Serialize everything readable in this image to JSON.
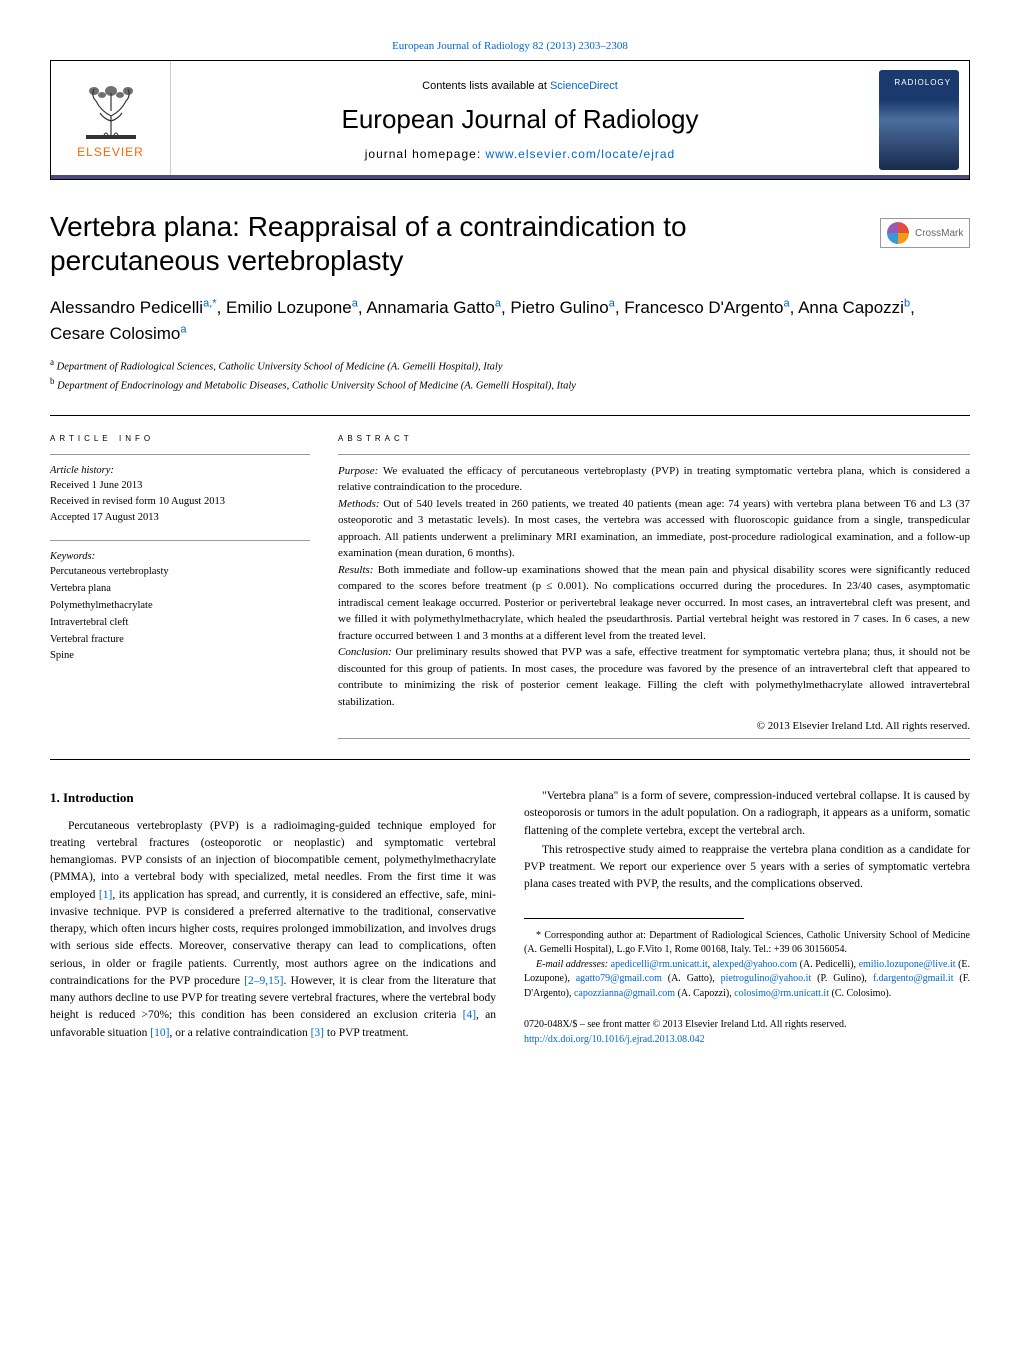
{
  "header_link": "European Journal of Radiology 82 (2013) 2303–2308",
  "masthead": {
    "contents_prefix": "Contents lists available at ",
    "contents_link": "ScienceDirect",
    "journal_name": "European Journal of Radiology",
    "homepage_prefix": "journal homepage: ",
    "homepage_link": "www.elsevier.com/locate/ejrad",
    "elsevier": "ELSEVIER",
    "cover_text": "RADIOLOGY"
  },
  "title": "Vertebra plana: Reappraisal of a contraindication to percutaneous vertebroplasty",
  "crossmark_label": "CrossMark",
  "authors_html": "Alessandro Pedicelli<sup>a,*</sup>, Emilio Lozupone<sup>a</sup>, Annamaria Gatto<sup>a</sup>, Pietro Gulino<sup>a</sup>, Francesco D'Argento<sup>a</sup>, Anna Capozzi<sup>b</sup>, Cesare Colosimo<sup>a</sup>",
  "affiliations": {
    "a": "Department of Radiological Sciences, Catholic University School of Medicine (A. Gemelli Hospital), Italy",
    "b": "Department of Endocrinology and Metabolic Diseases, Catholic University School of Medicine (A. Gemelli Hospital), Italy"
  },
  "article_info": {
    "header": "ARTICLE INFO",
    "history_label": "Article history:",
    "received": "Received 1 June 2013",
    "revised": "Received in revised form 10 August 2013",
    "accepted": "Accepted 17 August 2013",
    "keywords_label": "Keywords:",
    "keywords": [
      "Percutaneous vertebroplasty",
      "Vertebra plana",
      "Polymethylmethacrylate",
      "Intravertebral cleft",
      "Vertebral fracture",
      "Spine"
    ]
  },
  "abstract": {
    "header": "ABSTRACT",
    "purpose_label": "Purpose:",
    "purpose": " We evaluated the efficacy of percutaneous vertebroplasty (PVP) in treating symptomatic vertebra plana, which is considered a relative contraindication to the procedure.",
    "methods_label": "Methods:",
    "methods": " Out of 540 levels treated in 260 patients, we treated 40 patients (mean age: 74 years) with vertebra plana between T6 and L3 (37 osteoporotic and 3 metastatic levels). In most cases, the vertebra was accessed with fluoroscopic guidance from a single, transpedicular approach. All patients underwent a preliminary MRI examination, an immediate, post-procedure radiological examination, and a follow-up examination (mean duration, 6 months).",
    "results_label": "Results:",
    "results": " Both immediate and follow-up examinations showed that the mean pain and physical disability scores were significantly reduced compared to the scores before treatment (p ≤ 0.001). No complications occurred during the procedures. In 23/40 cases, asymptomatic intradiscal cement leakage occurred. Posterior or perivertebral leakage never occurred. In most cases, an intravertebral cleft was present, and we filled it with polymethylmethacrylate, which healed the pseudarthrosis. Partial vertebral height was restored in 7 cases. In 6 cases, a new fracture occurred between 1 and 3 months at a different level from the treated level.",
    "conclusion_label": "Conclusion:",
    "conclusion": " Our preliminary results showed that PVP was a safe, effective treatment for symptomatic vertebra plana; thus, it should not be discounted for this group of patients. In most cases, the procedure was favored by the presence of an intravertebral cleft that appeared to contribute to minimizing the risk of posterior cement leakage. Filling the cleft with polymethylmethacrylate allowed intravertebral stabilization.",
    "copyright": "© 2013 Elsevier Ireland Ltd. All rights reserved."
  },
  "intro": {
    "heading": "1. Introduction",
    "p1_before": "Percutaneous vertebroplasty (PVP) is a radioimaging-guided technique employed for treating vertebral fractures (osteoporotic or neoplastic) and symptomatic vertebral hemangiomas. PVP consists of an injection of biocompatible cement, polymethylmethacrylate (PMMA), into a vertebral body with specialized, metal needles. From the first time it was employed ",
    "ref1": "[1]",
    "p1_after": ", its application has spread, and currently, it is considered an effective, safe, mini-invasive technique. PVP is considered a preferred alternative to the traditional, conservative therapy, which often incurs higher costs, requires prolonged immobilization, and involves drugs with serious side effects. Moreover, conservative therapy can lead to complications, often serious, in older or fragile patients. Currently, most authors agree on the indications and contraindications for the PVP procedure ",
    "ref2": "[2–9,15]",
    "p1_mid": ". However, it is clear from the literature that many authors decline to use PVP for treating severe vertebral fractures, where the vertebral body height is reduced >70%; this condition has been considered an exclusion criteria ",
    "ref3": "[4]",
    "p1_mid2": ", an unfavorable situation ",
    "ref4": "[10]",
    "p1_mid3": ", or a relative contraindication ",
    "ref5": "[3]",
    "p1_end": " to PVP treatment.",
    "p2": "\"Vertebra plana\" is a form of severe, compression-induced vertebral collapse. It is caused by osteoporosis or tumors in the adult population. On a radiograph, it appears as a uniform, somatic flattening of the complete vertebra, except the vertebral arch.",
    "p3": "This retrospective study aimed to reappraise the vertebra plana condition as a candidate for PVP treatment. We report our experience over 5 years with a series of symptomatic vertebra plana cases treated with PVP, the results, and the complications observed."
  },
  "footnotes": {
    "corresponding_label": "* Corresponding author at: ",
    "corresponding": "Department of Radiological Sciences, Catholic University School of Medicine (A. Gemelli Hospital), L.go F.Vito 1, Rome 00168, Italy. Tel.: +39 06 30156054.",
    "email_label": "E-mail addresses: ",
    "emails": [
      {
        "addr": "apedicelli@rm.unicatt.it",
        "who": ""
      },
      {
        "addr": "alexped@yahoo.com",
        "who": " (A. Pedicelli), "
      },
      {
        "addr": "emilio.lozupone@live.it",
        "who": " (E. Lozupone), "
      },
      {
        "addr": "agatto79@gmail.com",
        "who": " (A. Gatto), "
      },
      {
        "addr": "pietrogulino@yahoo.it",
        "who": " (P. Gulino), "
      },
      {
        "addr": "f.dargento@gmail.it",
        "who": " (F. D'Argento), "
      },
      {
        "addr": "capozzianna@gmail.com",
        "who": " (A. Capozzi), "
      },
      {
        "addr": "colosimo@rm.unicatt.it",
        "who": " (C. Colosimo)."
      }
    ]
  },
  "bottom": {
    "issn": "0720-048X/$ – see front matter © 2013 Elsevier Ireland Ltd. All rights reserved.",
    "doi": "http://dx.doi.org/10.1016/j.ejrad.2013.08.042"
  }
}
